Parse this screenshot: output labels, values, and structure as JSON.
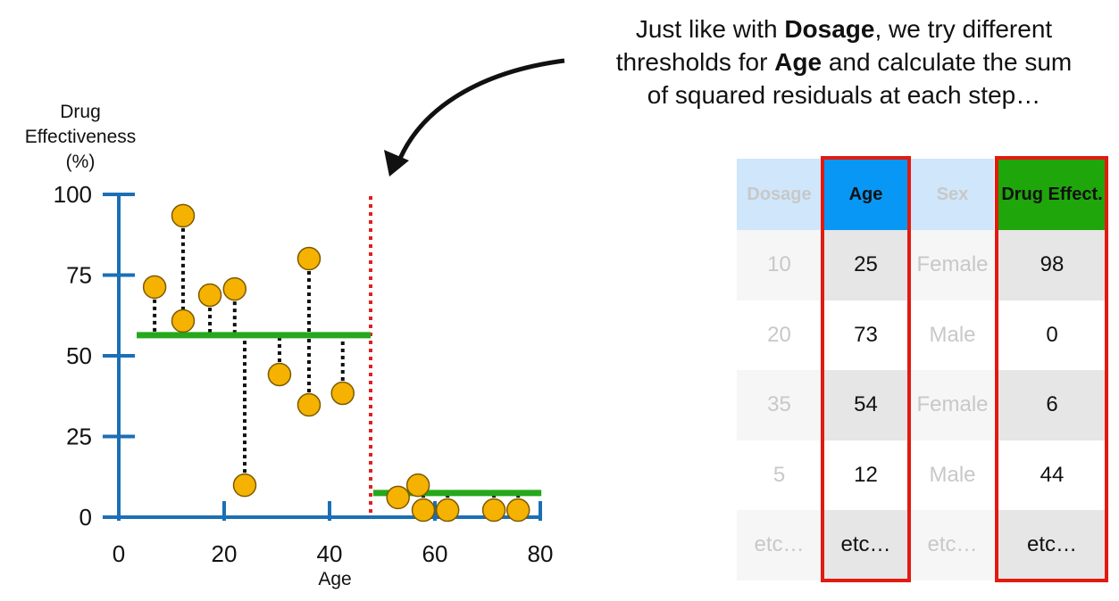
{
  "caption": {
    "line1_pre": "Just like with ",
    "line1_bold": "Dosage",
    "line1_post": ", we try different",
    "line2_pre": "thresholds for ",
    "line2_bold": "Age",
    "line2_post": " and calculate the sum",
    "line3": "of squared residuals at each step…"
  },
  "chart_data": {
    "type": "scatter",
    "ylabel_lines": [
      "Drug",
      "Effectiveness",
      "(%)"
    ],
    "xlabel": "Age",
    "xlim": [
      0,
      80
    ],
    "ylim": [
      0,
      100
    ],
    "xticks": [
      "0",
      "20",
      "40",
      "60",
      "80"
    ],
    "yticks": [
      "0",
      "25",
      "50",
      "75",
      "100"
    ],
    "points": [
      {
        "x": 6.8,
        "y": 71.3
      },
      {
        "x": 12.2,
        "y": 93.4
      },
      {
        "x": 12.2,
        "y": 60.8
      },
      {
        "x": 17.3,
        "y": 68.8
      },
      {
        "x": 22.0,
        "y": 70.7
      },
      {
        "x": 23.9,
        "y": 9.9
      },
      {
        "x": 30.5,
        "y": 44.2
      },
      {
        "x": 36.1,
        "y": 80.1
      },
      {
        "x": 36.1,
        "y": 34.8
      },
      {
        "x": 42.5,
        "y": 38.4
      },
      {
        "x": 53.0,
        "y": 6.1
      },
      {
        "x": 56.8,
        "y": 9.9
      },
      {
        "x": 57.8,
        "y": 2.2
      },
      {
        "x": 62.4,
        "y": 2.2
      },
      {
        "x": 71.2,
        "y": 2.2
      },
      {
        "x": 75.8,
        "y": 2.2
      }
    ],
    "threshold": 47.8,
    "segments": [
      {
        "x0": 3.4,
        "x1": 47.8,
        "y": 56.4
      },
      {
        "x0": 48.3,
        "x1": 80.2,
        "y": 7.5
      }
    ],
    "colors": {
      "axis": "#1b6fb5",
      "point": "#f6b200",
      "mean": "#25a81b",
      "threshold": "#e02020"
    }
  },
  "table": {
    "columns": [
      {
        "header": "Dosage",
        "values": [
          "10",
          "20",
          "35",
          "5",
          "etc…"
        ],
        "highlight": false
      },
      {
        "header": "Age",
        "values": [
          "25",
          "73",
          "54",
          "12",
          "etc…"
        ],
        "highlight": true,
        "color": "#0897f5"
      },
      {
        "header": "Sex",
        "values": [
          "Female",
          "Male",
          "Female",
          "Male",
          "etc…"
        ],
        "highlight": false
      },
      {
        "header": "Drug Effect.",
        "values": [
          "98",
          "0",
          "6",
          "44",
          "etc…"
        ],
        "highlight": true,
        "color": "#1fa60b"
      }
    ]
  }
}
